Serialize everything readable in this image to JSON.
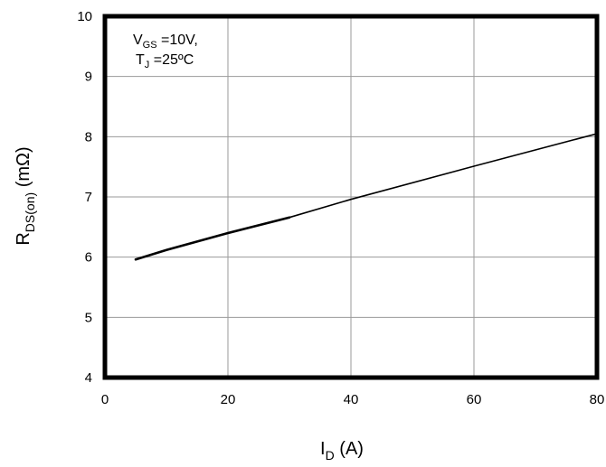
{
  "chart_data": {
    "type": "line",
    "xlim": [
      0,
      80
    ],
    "ylim": [
      4,
      10
    ],
    "x_ticks": [
      "0",
      "20",
      "40",
      "60",
      "80"
    ],
    "y_ticks": [
      "4",
      "5",
      "6",
      "7",
      "8",
      "9",
      "10"
    ],
    "grid": true,
    "xlabel": {
      "main": "I",
      "sub": "D",
      "unit": " (A)"
    },
    "ylabel": {
      "main": "R",
      "sub": "DS(on)",
      "unit": " (mΩ)"
    },
    "annotation": {
      "line1_main": "V",
      "line1_sub": "GS",
      "line1_rest": " =10V,",
      "line2_main": "T",
      "line2_sub": "J",
      "line2_rest": " =25ºC"
    },
    "series": [
      {
        "x": [
          5,
          10,
          20,
          30,
          40,
          60,
          80
        ],
        "values": [
          5.96,
          6.12,
          6.4,
          6.66,
          6.96,
          7.51,
          8.05
        ]
      }
    ],
    "line_color": "#000000"
  }
}
